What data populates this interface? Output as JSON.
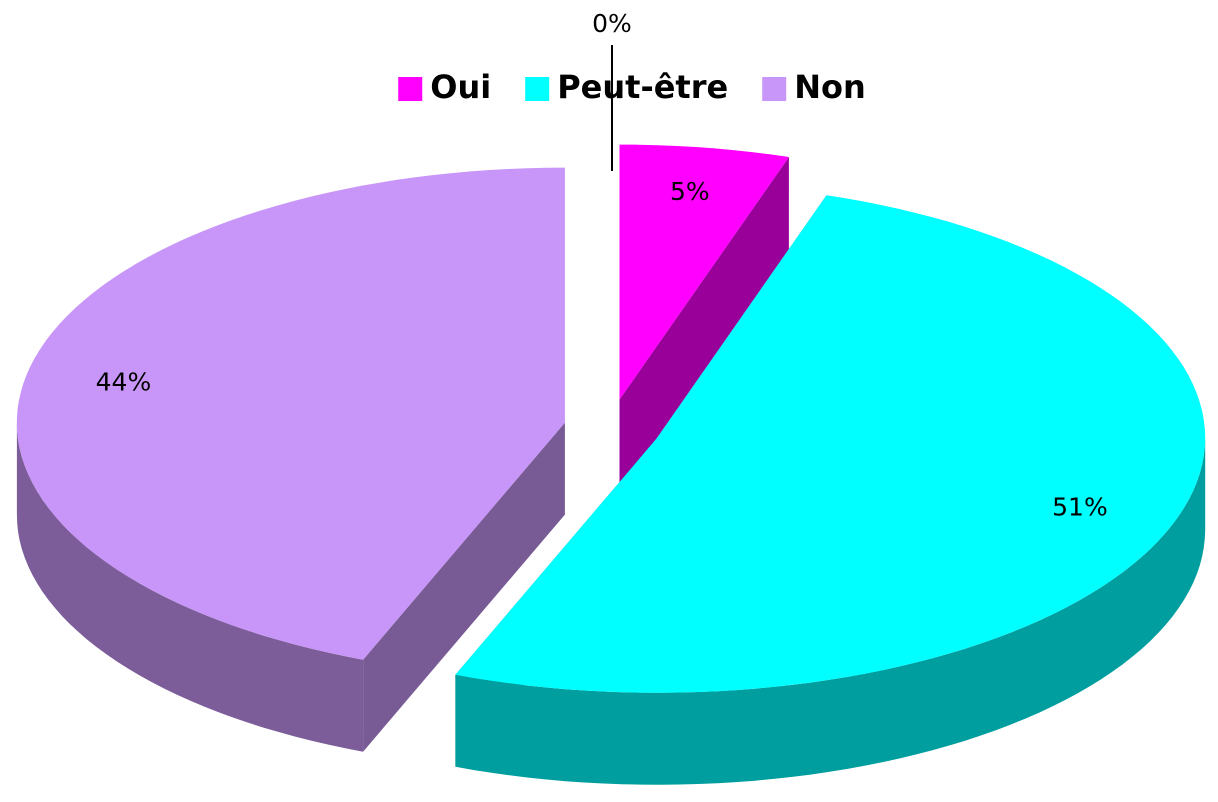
{
  "chart_data": {
    "type": "pie",
    "categories": [
      null,
      "Oui",
      "Peut-être",
      "Non"
    ],
    "values": [
      0,
      5,
      51,
      44
    ],
    "value_labels": [
      "0%",
      "5%",
      "51%",
      "44%"
    ],
    "colors": [
      null,
      "#ff00ff",
      "#00ffff",
      "#c896f8"
    ],
    "legend": "top"
  }
}
